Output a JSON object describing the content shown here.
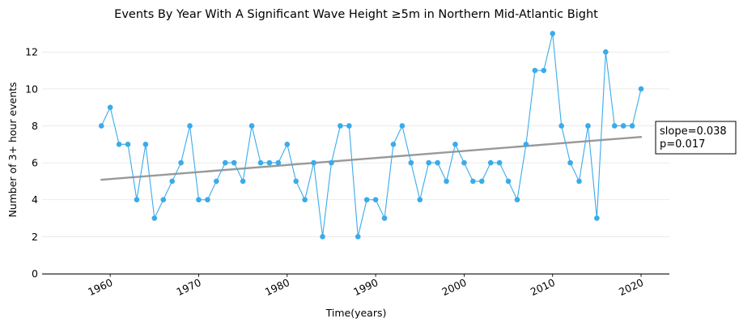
{
  "chart_data": {
    "type": "line",
    "title": "Events By Year With A Significant Wave Height ≥5m in Northern Mid-Atlantic Bight",
    "xlabel": "Time(years)",
    "ylabel": "Number of 3+ hour events",
    "xlim": [
      1952.3,
      2023.2
    ],
    "ylim": [
      0,
      13.5
    ],
    "x_ticks": [
      1960,
      1970,
      1980,
      1990,
      2000,
      2010,
      2020
    ],
    "y_ticks": [
      0,
      2,
      4,
      6,
      8,
      10,
      12
    ],
    "grid": "horizontal",
    "series": [
      {
        "name": "events",
        "color": "#3aabea",
        "x": [
          1959,
          1960,
          1961,
          1962,
          1963,
          1964,
          1965,
          1966,
          1967,
          1968,
          1969,
          1970,
          1971,
          1972,
          1973,
          1974,
          1975,
          1976,
          1977,
          1978,
          1979,
          1980,
          1981,
          1982,
          1983,
          1984,
          1985,
          1986,
          1987,
          1988,
          1989,
          1990,
          1991,
          1992,
          1993,
          1994,
          1995,
          1996,
          1997,
          1998,
          1999,
          2000,
          2001,
          2002,
          2003,
          2004,
          2005,
          2006,
          2007,
          2008,
          2009,
          2010,
          2011,
          2012,
          2013,
          2014,
          2015,
          2016,
          2017,
          2018,
          2019,
          2020
        ],
        "y": [
          8,
          9,
          7,
          7,
          4,
          7,
          3,
          4,
          5,
          6,
          8,
          4,
          4,
          5,
          6,
          6,
          5,
          8,
          6,
          6,
          6,
          7,
          5,
          4,
          6,
          2,
          6,
          8,
          8,
          2,
          4,
          4,
          3,
          7,
          8,
          6,
          4,
          6,
          6,
          5,
          7,
          6,
          5,
          5,
          6,
          6,
          5,
          4,
          7,
          11,
          11,
          13,
          8,
          6,
          5,
          8,
          3,
          12,
          8,
          8,
          8,
          10
        ]
      }
    ],
    "trend": {
      "name": "trend",
      "color": "#999999",
      "x": [
        1959,
        2020
      ],
      "y": [
        5.08,
        7.4
      ]
    },
    "annotation": {
      "lines": [
        "slope=0.038",
        "p=0.017"
      ]
    }
  }
}
